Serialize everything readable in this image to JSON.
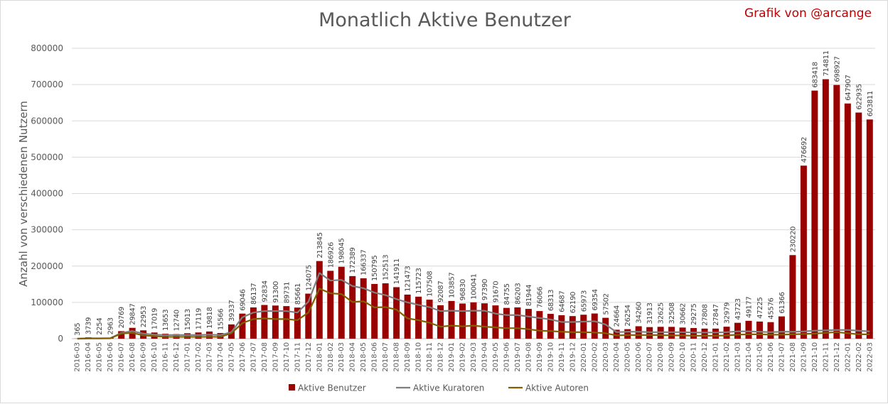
{
  "chart_data": {
    "type": "bar",
    "title": "Monatlich Aktive Benutzer",
    "credit": "Grafik von @arcange",
    "xlabel": "",
    "ylabel": "Anzahl von verschiedenen Nutzern",
    "ylim": [
      0,
      800000
    ],
    "yticks": [
      0,
      100000,
      200000,
      300000,
      400000,
      500000,
      600000,
      700000,
      800000
    ],
    "grid": true,
    "legend_position": "bottom",
    "categories": [
      "2016-03",
      "2016-04",
      "2016-05",
      "2016-06",
      "2016-07",
      "2016-08",
      "2016-09",
      "2016-10",
      "2016-11",
      "2016-12",
      "2017-01",
      "2017-02",
      "2017-03",
      "2017-04",
      "2017-05",
      "2017-06",
      "2017-07",
      "2017-08",
      "2017-09",
      "2017-10",
      "2017-11",
      "2017-12",
      "2018-01",
      "2018-02",
      "2018-03",
      "2018-04",
      "2018-05",
      "2018-06",
      "2018-07",
      "2018-08",
      "2018-09",
      "2018-10",
      "2018-11",
      "2018-12",
      "2019-01",
      "2019-02",
      "2019-03",
      "2019-04",
      "2019-05",
      "2019-06",
      "2019-07",
      "2019-08",
      "2019-09",
      "2019-10",
      "2019-11",
      "2019-12",
      "2020-01",
      "2020-02",
      "2020-03",
      "2020-04",
      "2020-05",
      "2020-06",
      "2020-07",
      "2020-08",
      "2020-09",
      "2020-10",
      "2020-11",
      "2020-12",
      "2021-01",
      "2021-02",
      "2021-03",
      "2021-04",
      "2021-05",
      "2021-06",
      "2021-07",
      "2021-08",
      "2021-09",
      "2021-10",
      "2021-11",
      "2021-12",
      "2022-01",
      "2022-02",
      "2022-03"
    ],
    "series": [
      {
        "name": "Aktive Benutzer",
        "type": "bar",
        "color": "#990000",
        "values": [
          365,
          3739,
          2254,
          2963,
          20769,
          29847,
          22953,
          17019,
          13653,
          12740,
          15013,
          17119,
          19818,
          15566,
          39337,
          69046,
          86137,
          92834,
          91300,
          89731,
          85661,
          124075,
          213845,
          186926,
          198045,
          172389,
          166337,
          150795,
          152513,
          141911,
          121473,
          115723,
          107508,
          92087,
          103857,
          96830,
          100041,
          97390,
          91670,
          84755,
          86203,
          81944,
          76066,
          68313,
          64687,
          62190,
          65973,
          69354,
          57502,
          24664,
          26254,
          34260,
          31913,
          32625,
          32508,
          30662,
          29275,
          27808,
          27847,
          32979,
          43723,
          49177,
          47225,
          45576,
          61366,
          230220,
          476692,
          683418,
          714811,
          698927,
          647907,
          622935,
          603811
        ]
      },
      {
        "name": "Aktive Kuratoren",
        "type": "line",
        "color": "#7f7f7f",
        "values": [
          0,
          1000,
          1000,
          1500,
          16000,
          21000,
          14000,
          11000,
          10000,
          10000,
          10000,
          10000,
          11000,
          10000,
          18000,
          59000,
          72000,
          76000,
          76000,
          76000,
          72000,
          102000,
          181000,
          160000,
          162000,
          145000,
          139000,
          127000,
          120000,
          109000,
          100000,
          93000,
          87000,
          76000,
          77000,
          76000,
          77000,
          77000,
          69000,
          65000,
          65000,
          61000,
          57000,
          53000,
          46000,
          46000,
          47000,
          48000,
          39000,
          18000,
          19000,
          19000,
          18000,
          18000,
          18000,
          18000,
          17000,
          17000,
          17000,
          18000,
          20000,
          20000,
          19000,
          18000,
          19000,
          19000,
          20000,
          22000,
          23000,
          24000,
          24000,
          22000,
          20000
        ]
      },
      {
        "name": "Aktive Autoren",
        "type": "line",
        "color": "#806000",
        "values": [
          0,
          800,
          800,
          1000,
          14000,
          16000,
          9000,
          7000,
          5000,
          5000,
          5000,
          5000,
          5000,
          5000,
          15000,
          43000,
          54000,
          56000,
          54000,
          54000,
          51000,
          72000,
          138000,
          125000,
          123000,
          101000,
          103000,
          86000,
          87000,
          80000,
          56000,
          51000,
          44000,
          33000,
          36000,
          34000,
          36000,
          33000,
          31000,
          29000,
          29000,
          26000,
          22000,
          21000,
          19000,
          18000,
          18000,
          17000,
          15000,
          9000,
          10000,
          10000,
          10000,
          10000,
          9000,
          9000,
          8000,
          8000,
          8000,
          9000,
          11000,
          12000,
          12000,
          11000,
          11000,
          12000,
          13000,
          14000,
          16000,
          18000,
          15000,
          12000,
          12000
        ]
      }
    ]
  }
}
